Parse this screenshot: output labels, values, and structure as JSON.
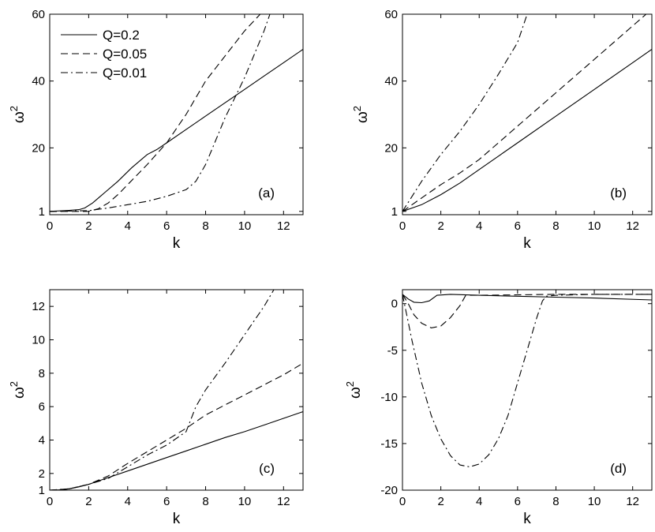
{
  "chart_data": [
    {
      "type": "line",
      "panel_label": "(a)",
      "xlabel": "k",
      "ylabel": "ω",
      "ylabel_sup": "2",
      "xlim": [
        0,
        13
      ],
      "ylim": [
        0,
        60
      ],
      "xticks": [
        0,
        2,
        4,
        6,
        8,
        10,
        12
      ],
      "yticks": [
        1,
        20,
        40,
        60
      ],
      "legend": "top-left",
      "grid": false,
      "series": [
        {
          "name": "Q=0.2",
          "style": "solid",
          "x": [
            0,
            1,
            1.5,
            1.8,
            2.2,
            2.8,
            3.5,
            4.2,
            5,
            5.5,
            6,
            7,
            8,
            9,
            10,
            11,
            12,
            13
          ],
          "y": [
            1,
            1.3,
            1.5,
            2,
            3.5,
            6.5,
            10,
            14,
            18,
            19.5,
            21.5,
            25.5,
            29.5,
            33.5,
            37.5,
            41.5,
            45.5,
            49.5
          ]
        },
        {
          "name": "Q=0.05",
          "style": "dashed",
          "x": [
            0,
            2,
            2.5,
            3,
            3.5,
            4,
            5,
            6,
            7,
            8,
            9,
            10,
            10.8
          ],
          "y": [
            1,
            1,
            1.8,
            3.5,
            6,
            9,
            15,
            21.5,
            30,
            40,
            47.5,
            55,
            60
          ]
        },
        {
          "name": "Q=0.01",
          "style": "dashdot",
          "x": [
            0,
            2,
            3,
            4,
            5,
            6,
            7,
            7.5,
            8,
            8.5,
            9,
            9.5,
            10,
            10.5,
            11,
            11.3
          ],
          "y": [
            1,
            1.2,
            2,
            3,
            4,
            5.5,
            7.5,
            10,
            15,
            22,
            29,
            35,
            41,
            48,
            55,
            60
          ]
        }
      ]
    },
    {
      "type": "line",
      "panel_label": "(b)",
      "xlabel": "k",
      "ylabel": "ω",
      "ylabel_sup": "2",
      "xlim": [
        0,
        13
      ],
      "ylim": [
        0,
        60
      ],
      "xticks": [
        0,
        2,
        4,
        6,
        8,
        10,
        12
      ],
      "yticks": [
        1,
        20,
        40,
        60
      ],
      "grid": false,
      "series": [
        {
          "name": "Q=0.2",
          "style": "solid",
          "x": [
            0,
            1,
            2,
            3,
            4,
            5,
            6,
            8,
            10,
            12,
            13
          ],
          "y": [
            1,
            3,
            6,
            9.5,
            13.5,
            17.5,
            21.5,
            29.5,
            37.5,
            45.5,
            49.5
          ]
        },
        {
          "name": "Q=0.05",
          "style": "dashed",
          "x": [
            0,
            1,
            2,
            3,
            4,
            5,
            6,
            8,
            10,
            12,
            12.7
          ],
          "y": [
            1,
            5,
            9,
            12.5,
            16.5,
            21.5,
            26.5,
            36.5,
            46.5,
            56.5,
            60
          ]
        },
        {
          "name": "Q=0.01",
          "style": "dashdot",
          "x": [
            0,
            1,
            2,
            3,
            4,
            5,
            6,
            6.5
          ],
          "y": [
            1,
            10,
            18,
            25,
            33,
            42,
            51.5,
            60
          ]
        }
      ]
    },
    {
      "type": "line",
      "panel_label": "(c)",
      "xlabel": "k",
      "ylabel": "ω",
      "ylabel_sup": "2",
      "xlim": [
        0,
        13
      ],
      "ylim": [
        1,
        13
      ],
      "xticks": [
        0,
        2,
        4,
        6,
        8,
        10,
        12
      ],
      "yticks": [
        1,
        2,
        4,
        6,
        8,
        10,
        12
      ],
      "grid": false,
      "series": [
        {
          "name": "Q=0.2",
          "style": "solid",
          "x": [
            0,
            0.5,
            1,
            1.5,
            2,
            3,
            4,
            5,
            6,
            7,
            8,
            9,
            10,
            11,
            12,
            13
          ],
          "y": [
            1,
            1.02,
            1.08,
            1.2,
            1.35,
            1.75,
            2.15,
            2.55,
            2.95,
            3.35,
            3.75,
            4.15,
            4.5,
            4.9,
            5.3,
            5.7
          ]
        },
        {
          "name": "Q=0.05",
          "style": "dashed",
          "x": [
            0,
            1,
            2,
            3,
            4,
            5,
            6,
            7,
            8,
            9,
            10,
            11,
            12,
            13
          ],
          "y": [
            1,
            1.08,
            1.35,
            1.85,
            2.6,
            3.3,
            4,
            4.7,
            5.5,
            6.1,
            6.7,
            7.3,
            7.9,
            8.6
          ]
        },
        {
          "name": "Q=0.01",
          "style": "dashdot",
          "x": [
            0,
            1,
            2,
            3,
            4,
            5,
            6,
            7,
            7.5,
            8,
            9,
            10,
            11,
            11.5
          ],
          "y": [
            1,
            1.08,
            1.35,
            1.7,
            2.4,
            3.1,
            3.7,
            4.5,
            6,
            7,
            8.6,
            10.3,
            12,
            13
          ]
        }
      ]
    },
    {
      "type": "line",
      "panel_label": "(d)",
      "xlabel": "k",
      "ylabel": "ω",
      "ylabel_sup": "2",
      "xlim": [
        0,
        13
      ],
      "ylim": [
        -20,
        1.5
      ],
      "xticks": [
        0,
        2,
        4,
        6,
        8,
        10,
        12
      ],
      "yticks": [
        -20,
        -15,
        -10,
        -5,
        0
      ],
      "grid": false,
      "series": [
        {
          "name": "Q=0.2",
          "style": "solid",
          "x": [
            0,
            0.3,
            0.6,
            1,
            1.4,
            1.8,
            2.5,
            4,
            6,
            8,
            10,
            13
          ],
          "y": [
            1,
            0.5,
            0.15,
            0.1,
            0.3,
            0.9,
            1,
            0.9,
            0.8,
            0.7,
            0.6,
            0.4
          ]
        },
        {
          "name": "Q=0.05",
          "style": "dashed",
          "x": [
            0,
            0.3,
            0.6,
            1,
            1.5,
            2,
            2.5,
            3,
            3.3,
            4,
            6,
            8,
            10,
            13
          ],
          "y": [
            1,
            0,
            -1.2,
            -2.1,
            -2.6,
            -2.4,
            -1.5,
            -0.2,
            0.9,
            0.9,
            0.95,
            1,
            1,
            1
          ]
        },
        {
          "name": "Q=0.01",
          "style": "dashdot",
          "x": [
            0,
            0.2,
            0.5,
            1,
            1.5,
            2,
            2.5,
            3,
            3.5,
            4,
            4.5,
            5,
            5.5,
            6,
            6.5,
            7,
            7.3,
            7.5,
            8,
            10,
            13
          ],
          "y": [
            1,
            -1,
            -4,
            -8.5,
            -12,
            -14.5,
            -16.3,
            -17.3,
            -17.5,
            -17.2,
            -16.2,
            -14.5,
            -12,
            -8.5,
            -5,
            -1.5,
            0.3,
            0.8,
            0.9,
            1,
            1
          ]
        }
      ]
    }
  ]
}
